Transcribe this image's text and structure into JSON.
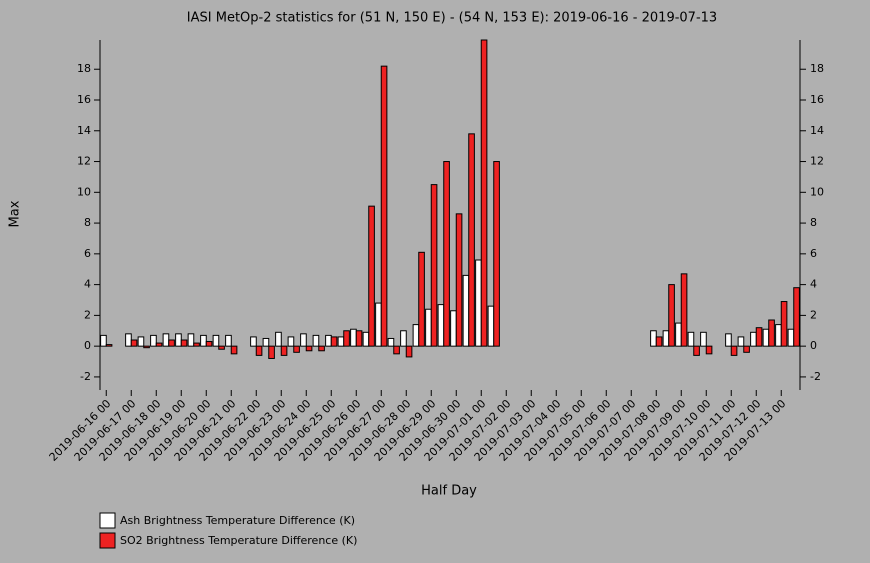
{
  "chart_data": {
    "type": "bar",
    "title": "IASI MetOp-2 statistics for (51 N, 150 E) - (54 N, 153 E): 2019-06-16 - 2019-07-13",
    "x_label": "Half Day",
    "y_label": "Max",
    "categories": [
      "2019-06-16 00",
      null,
      "2019-06-17 00",
      null,
      "2019-06-18 00",
      null,
      "2019-06-19 00",
      null,
      "2019-06-20 00",
      null,
      "2019-06-21 00",
      null,
      "2019-06-22 00",
      null,
      "2019-06-23 00",
      null,
      "2019-06-24 00",
      null,
      "2019-06-25 00",
      null,
      "2019-06-26 00",
      null,
      "2019-06-27 00",
      null,
      "2019-06-28 00",
      null,
      "2019-06-29 00",
      null,
      "2019-06-30 00",
      null,
      "2019-07-01 00",
      null,
      "2019-07-02 00",
      null,
      "2019-07-03 00",
      null,
      "2019-07-04 00",
      null,
      "2019-07-05 00",
      null,
      "2019-07-06 00",
      null,
      "2019-07-07 00",
      null,
      "2019-07-08 00",
      null,
      "2019-07-09 00",
      null,
      "2019-07-10 00",
      null,
      "2019-07-11 00",
      null,
      "2019-07-12 00",
      null,
      "2019-07-13 00",
      null
    ],
    "series": [
      {
        "name": "Ash Brightness Temperature Difference (K)",
        "color": "#ffffff",
        "values": [
          0.7,
          null,
          0.8,
          0.6,
          0.7,
          0.8,
          0.8,
          0.8,
          0.7,
          0.7,
          0.7,
          null,
          0.6,
          0.5,
          0.9,
          0.6,
          0.8,
          0.7,
          0.7,
          0.6,
          1.1,
          0.9,
          2.8,
          0.5,
          1.0,
          1.4,
          2.4,
          2.7,
          2.3,
          4.6,
          5.6,
          2.6,
          null,
          null,
          null,
          null,
          null,
          null,
          null,
          null,
          null,
          null,
          null,
          null,
          1.0,
          1.0,
          1.5,
          0.9,
          0.9,
          null,
          0.8,
          0.6,
          0.9,
          1.1,
          1.4,
          1.1
        ]
      },
      {
        "name": "SO2 Brightness Temperature Difference (K)",
        "color": "#ee2222",
        "values": [
          0.1,
          null,
          0.4,
          -0.1,
          0.2,
          0.4,
          0.4,
          0.2,
          0.3,
          -0.2,
          -0.5,
          null,
          -0.6,
          -0.8,
          -0.6,
          -0.4,
          -0.3,
          -0.3,
          0.6,
          1.0,
          1.0,
          9.1,
          18.2,
          -0.5,
          -0.7,
          6.1,
          10.5,
          12.0,
          8.6,
          13.8,
          19.9,
          12.0,
          null,
          null,
          null,
          null,
          null,
          null,
          null,
          null,
          null,
          null,
          null,
          null,
          0.6,
          4.0,
          4.7,
          -0.6,
          -0.5,
          null,
          -0.6,
          -0.4,
          1.2,
          1.7,
          2.9,
          3.8
        ]
      }
    ],
    "ylim": [
      -2.85,
      19.9
    ],
    "yticks": [
      -2,
      0,
      2,
      4,
      6,
      8,
      10,
      12,
      14,
      16,
      18
    ]
  }
}
